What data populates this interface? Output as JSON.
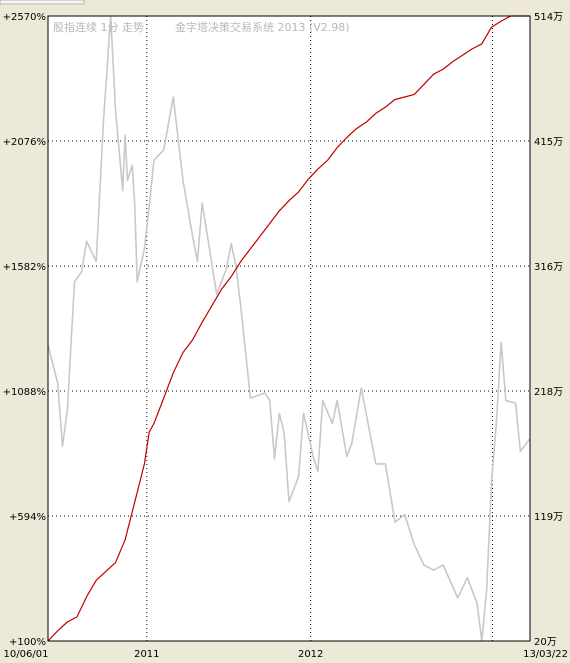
{
  "title": {
    "left": "股指连续 1分 走势",
    "right": "金字塔决策交易系统 2013 (V2.98)"
  },
  "chart_data": {
    "type": "line",
    "title": "股指连续 1分 走势",
    "xlabel": "",
    "ylabel": "",
    "left_axis_ticks": [
      "+2570%",
      "+2076%",
      "+1582%",
      "+1088%",
      "+594%",
      "+100%"
    ],
    "right_axis_ticks": [
      "514万",
      "415万",
      "316万",
      "218万",
      "119万",
      "20万"
    ],
    "left_ylim": [
      100,
      2570
    ],
    "right_ylim": [
      20,
      514
    ],
    "x_tick_labels": [
      "10/06/01",
      "2011",
      "2012",
      "13/03/22"
    ],
    "x_tick_positions": [
      0,
      0.205,
      0.545,
      1
    ],
    "grid": true,
    "series": [
      {
        "color": "#c8c8c8",
        "axis": "left",
        "x": [
          0,
          0.02,
          0.03,
          0.04,
          0.055,
          0.07,
          0.08,
          0.1,
          0.115,
          0.13,
          0.14,
          0.155,
          0.16,
          0.165,
          0.175,
          0.18,
          0.185,
          0.2,
          0.21,
          0.22,
          0.24,
          0.26,
          0.28,
          0.3,
          0.31,
          0.32,
          0.35,
          0.37,
          0.38,
          0.39,
          0.4,
          0.42,
          0.45,
          0.46,
          0.47,
          0.48,
          0.49,
          0.5,
          0.52,
          0.53,
          0.55,
          0.56,
          0.57,
          0.59,
          0.6,
          0.62,
          0.63,
          0.65,
          0.68,
          0.7,
          0.72,
          0.74,
          0.76,
          0.78,
          0.8,
          0.82,
          0.85,
          0.87,
          0.89,
          0.9,
          0.91,
          0.92,
          0.93,
          0.94,
          0.95,
          0.97,
          0.98,
          1
        ],
        "values": [
          1270,
          1120,
          870,
          1010,
          1520,
          1560,
          1680,
          1600,
          2150,
          2600,
          2200,
          1880,
          2100,
          1920,
          1980,
          1820,
          1520,
          1650,
          1820,
          2000,
          2040,
          2250,
          1920,
          1700,
          1600,
          1830,
          1470,
          1570,
          1670,
          1580,
          1420,
          1060,
          1080,
          1050,
          820,
          1000,
          920,
          650,
          750,
          1000,
          830,
          770,
          1050,
          960,
          1050,
          830,
          880,
          1100,
          800,
          800,
          570,
          600,
          480,
          400,
          380,
          400,
          270,
          350,
          250,
          90,
          300,
          720,
          960,
          1280,
          1050,
          1040,
          850,
          900
        ]
      },
      {
        "color": "#c00000",
        "axis": "right",
        "x": [
          0,
          0.02,
          0.04,
          0.06,
          0.08,
          0.1,
          0.12,
          0.14,
          0.16,
          0.18,
          0.19,
          0.2,
          0.21,
          0.22,
          0.24,
          0.26,
          0.28,
          0.3,
          0.32,
          0.34,
          0.36,
          0.38,
          0.4,
          0.42,
          0.44,
          0.46,
          0.48,
          0.5,
          0.52,
          0.54,
          0.56,
          0.58,
          0.6,
          0.62,
          0.64,
          0.66,
          0.68,
          0.7,
          0.72,
          0.74,
          0.76,
          0.78,
          0.8,
          0.82,
          0.84,
          0.86,
          0.88,
          0.9,
          0.92,
          0.94,
          0.96,
          0.98,
          1
        ],
        "values": [
          20,
          28,
          35,
          39,
          55,
          68,
          75,
          82,
          100,
          130,
          145,
          160,
          185,
          192,
          212,
          232,
          248,
          258,
          272,
          285,
          298,
          308,
          320,
          330,
          340,
          350,
          360,
          368,
          375,
          385,
          393,
          400,
          410,
          418,
          425,
          430,
          437,
          442,
          448,
          450,
          452,
          460,
          468,
          472,
          478,
          483,
          488,
          492,
          505,
          510,
          515,
          527,
          548
        ]
      }
    ]
  }
}
